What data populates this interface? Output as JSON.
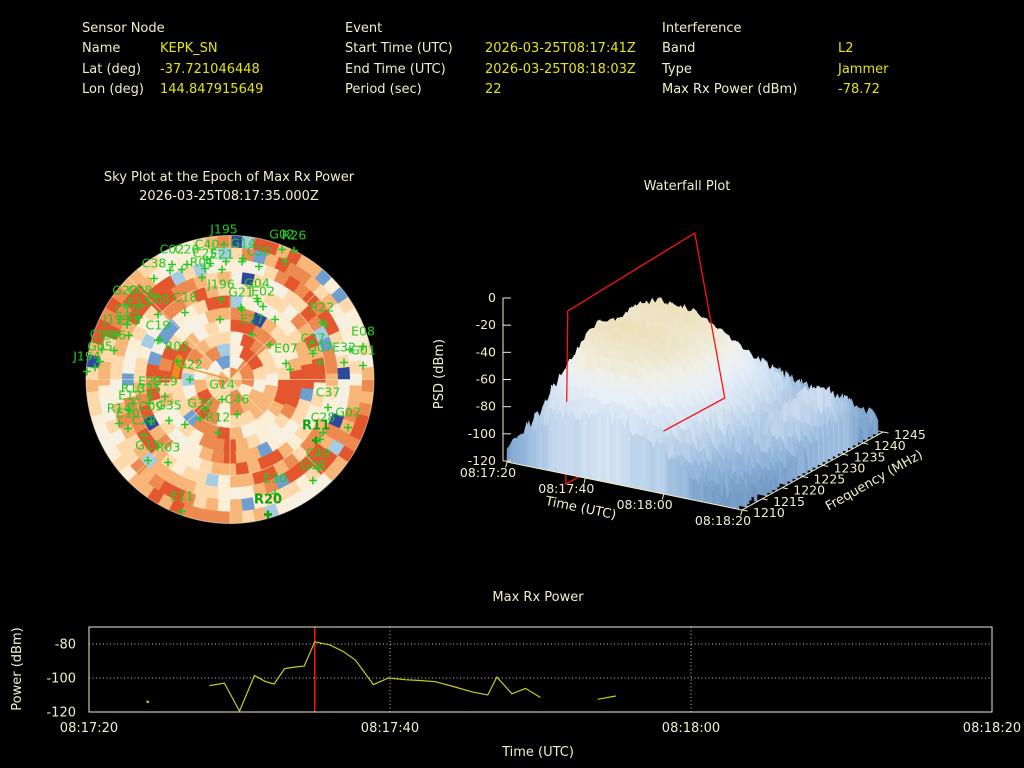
{
  "header": {
    "sensor_node": {
      "title": "Sensor Node",
      "rows": [
        {
          "label": "Name",
          "value": "KEPK_SN"
        },
        {
          "label": "Lat (deg)",
          "value": "-37.721046448"
        },
        {
          "label": "Lon (deg)",
          "value": "144.847915649"
        }
      ]
    },
    "event": {
      "title": "Event",
      "rows": [
        {
          "label": "Start Time (UTC)",
          "value": "2026-03-25T08:17:41Z"
        },
        {
          "label": "End Time (UTC)",
          "value": "2026-03-25T08:18:03Z"
        },
        {
          "label": "Period (sec)",
          "value": "22"
        }
      ]
    },
    "interference": {
      "title": "Interference",
      "rows": [
        {
          "label": "Band",
          "value": "L2"
        },
        {
          "label": "Type",
          "value": "Jammer"
        },
        {
          "label": "Max Rx Power (dBm)",
          "value": "-78.72"
        }
      ]
    }
  },
  "colors": {
    "cream": "#f1eecb",
    "yellow": "#e4e414",
    "green": "#23c923",
    "green_bold": "#0da30d",
    "line": "#c9c91e",
    "red": "#ff1212",
    "grid_dot": "#d9d9cf",
    "orange": "#f08c1e",
    "sky_palette": [
      "#e4572e",
      "#ec8a4f",
      "#f7b577",
      "#fdd9ab",
      "#fdeed7",
      "#f6f1e2",
      "#a6cbe4",
      "#6f9fd0",
      "#30479e"
    ],
    "sky_weights": [
      0.14,
      0.22,
      0.2,
      0.18,
      0.12,
      0.05,
      0.05,
      0.03,
      0.01
    ],
    "surface_stops": [
      [
        -120,
        "#5d86b8"
      ],
      [
        -100,
        "#8fb3d8"
      ],
      [
        -85,
        "#b5cee8"
      ],
      [
        -70,
        "#d3e2f2"
      ],
      [
        -55,
        "#e8eff7"
      ],
      [
        -45,
        "#f0f1ea"
      ],
      [
        -35,
        "#efe9d2"
      ],
      [
        -20,
        "#ecdfb6"
      ],
      [
        0,
        "#eadcae"
      ]
    ]
  },
  "chart_data": [
    {
      "id": "sky_plot",
      "type": "heatmap",
      "projection": "polar",
      "title": "Sky Plot at the Epoch of Max Rx Power",
      "subtitle": "2026-03-25T08:17:35.000Z",
      "rings": 12,
      "seed": 1337,
      "satellites": [
        {
          "id": "J195",
          "p": [
            -6,
            -146
          ]
        },
        {
          "id": "G02",
          "p": [
            52,
            -141
          ]
        },
        {
          "id": "R26",
          "p": [
            64,
            -140
          ]
        },
        {
          "id": "C40",
          "p": [
            -23,
            -131
          ]
        },
        {
          "id": "G14",
          "p": [
            13,
            -132
          ]
        },
        {
          "id": "C02",
          "p": [
            -58,
            -126
          ]
        },
        {
          "id": "C26",
          "p": [
            -43,
            -126
          ]
        },
        {
          "id": "C25",
          "p": [
            -25,
            -122
          ]
        },
        {
          "id": "E21",
          "p": [
            -8,
            -121
          ]
        },
        {
          "id": "C30",
          "p": [
            29,
            -124
          ]
        },
        {
          "id": "C38",
          "p": [
            -76,
            -112
          ]
        },
        {
          "id": "R01",
          "p": [
            -28,
            -113
          ]
        },
        {
          "id": "G20",
          "p": [
            -105,
            -85
          ]
        },
        {
          "id": "C08",
          "p": [
            -90,
            -85
          ]
        },
        {
          "id": "J196",
          "p": [
            -9,
            -91
          ]
        },
        {
          "id": "G04",
          "p": [
            27,
            -92
          ]
        },
        {
          "id": "E02",
          "p": [
            33,
            -84
          ]
        },
        {
          "id": "G21",
          "p": [
            11,
            -83
          ]
        },
        {
          "id": "E13",
          "p": [
            -91,
            -73
          ]
        },
        {
          "id": "C05",
          "p": [
            -72,
            -76
          ]
        },
        {
          "id": "C18",
          "p": [
            -45,
            -78
          ]
        },
        {
          "id": "C15",
          "p": [
            -103,
            -66
          ]
        },
        {
          "id": "J199",
          "p": [
            -113,
            -56
          ]
        },
        {
          "id": "E28",
          "p": [
            -101,
            -55
          ]
        },
        {
          "id": "C19",
          "p": [
            -72,
            -50
          ]
        },
        {
          "id": "C06",
          "p": [
            -128,
            -41
          ]
        },
        {
          "id": "E06",
          "p": [
            -116,
            -40
          ]
        },
        {
          "id": "G05",
          "p": [
            -130,
            -29
          ]
        },
        {
          "id": "J194",
          "p": [
            -143,
            -19
          ]
        },
        {
          "id": "R22",
          "p": [
            92,
            -68
          ]
        },
        {
          "id": "E27",
          "p": [
            22,
            -56
          ]
        },
        {
          "id": "E08",
          "p": [
            133,
            -44
          ]
        },
        {
          "id": "C27",
          "p": [
            83,
            -37
          ]
        },
        {
          "id": "E07",
          "p": [
            56,
            -27
          ]
        },
        {
          "id": "G07",
          "p": [
            90,
            -28
          ]
        },
        {
          "id": "E32",
          "p": [
            114,
            -28
          ]
        },
        {
          "id": "G01",
          "p": [
            133,
            -25
          ]
        },
        {
          "id": "R02",
          "p": [
            -53,
            -29
          ]
        },
        {
          "id": "G22",
          "p": [
            -40,
            -11
          ]
        },
        {
          "id": "E29",
          "p": [
            -80,
            6
          ]
        },
        {
          "id": "G19",
          "p": [
            -65,
            6
          ]
        },
        {
          "id": "R13",
          "p": [
            -97,
            13
          ]
        },
        {
          "id": "C35",
          "p": [
            -81,
            13
          ]
        },
        {
          "id": "E12",
          "p": [
            -100,
            20
          ]
        },
        {
          "id": "R14",
          "p": [
            -111,
            33
          ]
        },
        {
          "id": "C09",
          "p": [
            -79,
            31
          ]
        },
        {
          "id": "G35",
          "p": [
            -61,
            30
          ]
        },
        {
          "id": "G39",
          "p": [
            -30,
            28
          ]
        },
        {
          "id": "E10",
          "p": [
            -102,
            38
          ]
        },
        {
          "id": "C22",
          "p": [
            -86,
            45
          ]
        },
        {
          "id": "R12",
          "p": [
            -12,
            42
          ]
        },
        {
          "id": "C46",
          "p": [
            7,
            24
          ]
        },
        {
          "id": "G14",
          "p": [
            -8,
            9
          ]
        },
        {
          "id": "C37",
          "p": [
            98,
            17
          ]
        },
        {
          "id": "G02",
          "p": [
            118,
            37
          ]
        },
        {
          "id": "C28",
          "p": [
            93,
            42
          ]
        },
        {
          "id": "R11",
          "p": [
            86,
            50
          ],
          "b": true
        },
        {
          "id": "G15",
          "p": [
            -82,
            70
          ]
        },
        {
          "id": "R03",
          "p": [
            -62,
            72
          ]
        },
        {
          "id": "C49",
          "p": [
            88,
            78
          ]
        },
        {
          "id": "G08",
          "p": [
            83,
            90
          ]
        },
        {
          "id": "E30",
          "p": [
            45,
            103
          ]
        },
        {
          "id": "E11",
          "p": [
            -48,
            121
          ]
        },
        {
          "id": "R20",
          "p": [
            38,
            124
          ],
          "b": true
        }
      ],
      "extra_markers": [
        [
          -60,
          -109
        ],
        [
          -48,
          -110
        ],
        [
          -20,
          -116
        ],
        [
          -4,
          -118
        ],
        [
          12,
          -118
        ],
        [
          -75,
          -83
        ],
        [
          28,
          -78
        ],
        [
          45,
          -60
        ],
        [
          95,
          -55
        ],
        [
          120,
          -30
        ],
        [
          -135,
          -12
        ],
        [
          -70,
          -40
        ],
        [
          12,
          -70
        ],
        [
          -25,
          30
        ],
        [
          -45,
          45
        ],
        [
          60,
          -10
        ],
        [
          90,
          60
        ],
        [
          40,
          -35
        ],
        [
          -10,
          -60
        ],
        [
          55,
          -118
        ]
      ],
      "jammer_bearing_line": {
        "from": [
          0,
          0
        ],
        "to": [
          -52,
          -14
        ],
        "streak": [
          [
            -55,
            -3
          ],
          [
            -51,
            -21
          ]
        ]
      }
    },
    {
      "id": "waterfall",
      "type": "surface",
      "title": "Waterfall Plot",
      "xlabel": "Time (UTC)",
      "ylabel": "Frequency (MHz)",
      "zlabel": "PSD (dBm)",
      "seed": 77,
      "psd_ticks": [
        0,
        -20,
        -40,
        -60,
        -80,
        -100,
        -120
      ],
      "psd_range": [
        -120,
        0
      ],
      "freq_ticks": [
        1210,
        1215,
        1220,
        1225,
        1230,
        1235,
        1240,
        1245
      ],
      "freq_range": [
        1210,
        1245
      ],
      "time_ticks": [
        {
          "sec": 0,
          "label": "08:17:20"
        },
        {
          "sec": 20,
          "label": "08:17:40"
        },
        {
          "sec": 40,
          "label": "08:18:00"
        },
        {
          "sec": 60,
          "label": "08:18:20"
        }
      ],
      "time_range_sec": [
        0,
        60
      ],
      "slice_sec": 15,
      "grid": {
        "t_start": 0,
        "t_step": 4,
        "f_start": 1210,
        "f_step": 5,
        "values": [
          [
            -112,
            -110,
            -108,
            -108,
            -110,
            -110,
            -112,
            -114
          ],
          [
            -97,
            -90,
            -86,
            -85,
            -87,
            -93,
            -100,
            -107
          ],
          [
            -86,
            -62,
            -48,
            -50,
            -46,
            -68,
            -88,
            -100
          ],
          [
            -80,
            -45,
            -28,
            -34,
            -30,
            -52,
            -78,
            -95
          ],
          [
            -76,
            -40,
            -24,
            -31,
            -25,
            -46,
            -70,
            -92
          ],
          [
            -72,
            -38,
            -22,
            -29,
            -23,
            -42,
            -66,
            -90
          ],
          [
            -73,
            -39,
            -23,
            -30,
            -24,
            -44,
            -67,
            -89
          ],
          [
            -71,
            -38,
            -25,
            -31,
            -27,
            -47,
            -70,
            -90
          ],
          [
            -76,
            -45,
            -30,
            -35,
            -33,
            -54,
            -75,
            -92
          ],
          [
            -81,
            -55,
            -42,
            -42,
            -42,
            -60,
            -80,
            -95
          ],
          [
            -86,
            -66,
            -54,
            -52,
            -55,
            -68,
            -86,
            -98
          ],
          [
            -96,
            -81,
            -70,
            -68,
            -73,
            -80,
            -93,
            -103
          ],
          [
            -105,
            -95,
            -90,
            -88,
            -90,
            -93,
            -101,
            -108
          ],
          [
            -108,
            -101,
            -96,
            -84,
            -76,
            -74,
            -91,
            -106
          ],
          [
            -111,
            -106,
            -101,
            -88,
            -79,
            -76,
            -93,
            -108
          ],
          [
            -114,
            -112,
            -110,
            -106,
            -100,
            -96,
            -106,
            -112
          ]
        ]
      }
    },
    {
      "id": "max_rx_power",
      "type": "line",
      "title": "Max Rx Power",
      "xlabel": "Time (UTC)",
      "ylabel": "Power (dBm)",
      "xticks": [
        {
          "sec": 0,
          "label": "08:17:20"
        },
        {
          "sec": 20,
          "label": "08:17:40"
        },
        {
          "sec": 40,
          "label": "08:18:00"
        },
        {
          "sec": 60,
          "label": "08:18:20"
        }
      ],
      "xlim_sec": [
        0,
        60
      ],
      "yticks": [
        -80,
        -100,
        -120
      ],
      "ylim": [
        -120,
        -70
      ],
      "grid_x_sec": [
        20,
        40
      ],
      "grid_y": [
        -80,
        -100
      ],
      "marker_sec": 15,
      "segments": [
        [
          [
            8,
            -104.5
          ],
          [
            9,
            -103
          ],
          [
            10,
            -119.5
          ],
          [
            11,
            -98.5
          ],
          [
            11.7,
            -102
          ],
          [
            12.3,
            -103.5
          ],
          [
            13,
            -94.5
          ],
          [
            13.7,
            -93.5
          ],
          [
            14.3,
            -93
          ],
          [
            15,
            -78.7
          ],
          [
            16,
            -80.5
          ],
          [
            16.9,
            -84.4
          ],
          [
            17.7,
            -89.4
          ],
          [
            18.9,
            -103.9
          ],
          [
            19.9,
            -100
          ],
          [
            21,
            -101
          ],
          [
            22,
            -101.5
          ],
          [
            23,
            -102.2
          ],
          [
            24.2,
            -105
          ],
          [
            25.5,
            -108.3
          ],
          [
            26.5,
            -110
          ],
          [
            27.1,
            -99.4
          ],
          [
            28.1,
            -109.3
          ],
          [
            29,
            -106.1
          ],
          [
            30,
            -111.5
          ]
        ],
        [
          [
            33.8,
            -112.5
          ],
          [
            35,
            -110.6
          ]
        ]
      ],
      "isolated_points": [
        [
          3.9,
          -114
        ]
      ]
    }
  ]
}
